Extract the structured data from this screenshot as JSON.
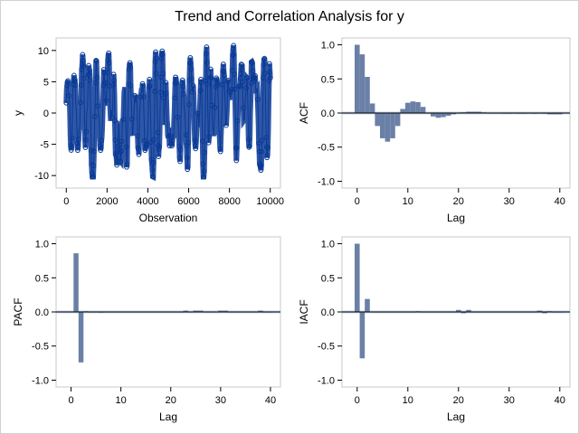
{
  "title": "Trend and Correlation Analysis for y",
  "colors": {
    "series": "#0a3a96",
    "bar_fill": "#6a80a6",
    "band": "#b0c4de",
    "axis": "#000000",
    "frame": "#c8c8c8"
  },
  "chart_data": [
    {
      "type": "line",
      "id": "series",
      "xlabel": "Observation",
      "ylabel": "y",
      "xlim": [
        -500,
        10500
      ],
      "ylim": [
        -12,
        12
      ],
      "xticks": [
        0,
        2000,
        4000,
        6000,
        8000,
        10000
      ],
      "yticks": [
        -10,
        -5,
        0,
        5,
        10
      ],
      "n_observations": 10000,
      "y_range_observed": [
        -10.2,
        10.8
      ],
      "markers": "circle"
    },
    {
      "type": "bar",
      "id": "acf",
      "xlabel": "Lag",
      "ylabel": "ACF",
      "xlim": [
        -3,
        42
      ],
      "ylim": [
        -1.1,
        1.1
      ],
      "xticks": [
        0,
        10,
        20,
        30,
        40
      ],
      "yticks": [
        -1.0,
        -0.5,
        0.0,
        0.5,
        1.0
      ],
      "band": 0.02,
      "lags": [
        0,
        1,
        2,
        3,
        4,
        5,
        6,
        7,
        8,
        9,
        10,
        11,
        12,
        13,
        14,
        15,
        16,
        17,
        18,
        19,
        20,
        21,
        22,
        23,
        24,
        25,
        26,
        27,
        28,
        29,
        30,
        31,
        32,
        33,
        34,
        35,
        36,
        37,
        38,
        39,
        40
      ],
      "values": [
        1.0,
        0.86,
        0.53,
        0.14,
        -0.19,
        -0.37,
        -0.42,
        -0.37,
        -0.19,
        0.06,
        0.15,
        0.17,
        0.16,
        0.09,
        0.0,
        -0.05,
        -0.07,
        -0.06,
        -0.04,
        -0.02,
        0.0,
        0.01,
        0.02,
        0.02,
        0.02,
        0.01,
        0.0,
        0.0,
        0.0,
        -0.01,
        -0.01,
        0.0,
        -0.01,
        -0.01,
        0.0,
        -0.01,
        0.0,
        -0.01,
        -0.02,
        -0.02,
        -0.02
      ]
    },
    {
      "type": "bar",
      "id": "pacf",
      "xlabel": "Lag",
      "ylabel": "PACF",
      "xlim": [
        -3,
        42
      ],
      "ylim": [
        -1.1,
        1.1
      ],
      "xticks": [
        0,
        10,
        20,
        30,
        40
      ],
      "yticks": [
        -1.0,
        -0.5,
        0.0,
        0.5,
        1.0
      ],
      "band": 0.02,
      "lags": [
        1,
        2,
        3,
        4,
        5,
        6,
        7,
        8,
        9,
        10,
        11,
        12,
        13,
        14,
        15,
        16,
        17,
        18,
        19,
        20,
        21,
        22,
        23,
        24,
        25,
        26,
        27,
        28,
        29,
        30,
        31,
        32,
        33,
        34,
        35,
        36,
        37,
        38,
        39,
        40
      ],
      "values": [
        0.86,
        -0.74,
        0.01,
        0.0,
        0.0,
        -0.01,
        0.0,
        0.0,
        0.0,
        0.0,
        0.0,
        0.0,
        0.0,
        0.0,
        0.0,
        0.0,
        0.0,
        0.0,
        0.0,
        0.0,
        0.0,
        0.0,
        0.02,
        0.0,
        0.02,
        0.02,
        0.0,
        0.0,
        0.0,
        0.02,
        0.02,
        0.0,
        0.0,
        0.0,
        0.0,
        0.0,
        0.0,
        0.02,
        0.0,
        0.0
      ]
    },
    {
      "type": "bar",
      "id": "iacf",
      "xlabel": "Lag",
      "ylabel": "IACF",
      "xlim": [
        -3,
        42
      ],
      "ylim": [
        -1.1,
        1.1
      ],
      "xticks": [
        0,
        10,
        20,
        30,
        40
      ],
      "yticks": [
        -1.0,
        -0.5,
        0.0,
        0.5,
        1.0
      ],
      "band": 0.02,
      "lags": [
        0,
        1,
        2,
        3,
        4,
        5,
        6,
        7,
        8,
        9,
        10,
        11,
        12,
        13,
        14,
        15,
        16,
        17,
        18,
        19,
        20,
        21,
        22,
        23,
        24,
        25,
        26,
        27,
        28,
        29,
        30,
        31,
        32,
        33,
        34,
        35,
        36,
        37,
        38,
        39,
        40
      ],
      "values": [
        1.0,
        -0.68,
        0.19,
        0.0,
        0.0,
        0.0,
        0.0,
        0.0,
        0.0,
        0.0,
        0.0,
        0.0,
        0.01,
        0.0,
        0.0,
        0.0,
        0.0,
        0.0,
        0.0,
        0.0,
        0.03,
        -0.02,
        0.03,
        0.0,
        0.0,
        0.0,
        0.0,
        0.0,
        0.0,
        0.0,
        0.0,
        0.0,
        0.0,
        0.0,
        0.0,
        0.0,
        0.02,
        -0.02,
        0.01,
        0.0,
        0.0
      ]
    }
  ]
}
